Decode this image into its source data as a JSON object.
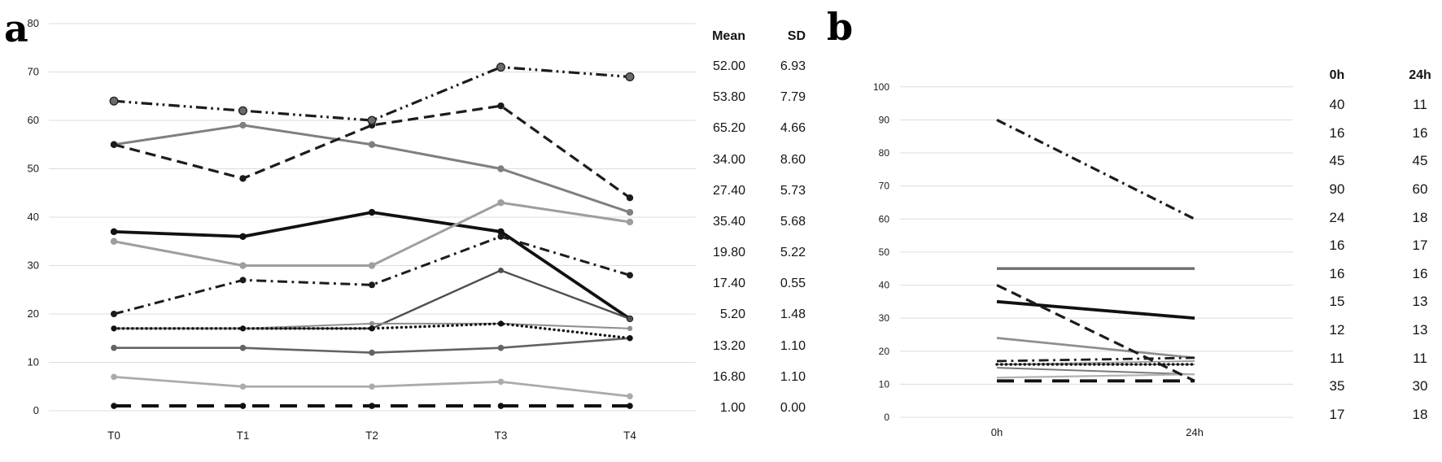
{
  "panels": {
    "a": {
      "letter": "a"
    },
    "b": {
      "letter": "b"
    }
  },
  "chart_data": [
    {
      "id": "a",
      "type": "line",
      "panel_letter": "a",
      "title": "",
      "xlabel": "",
      "ylabel": "",
      "categories": [
        "T0",
        "T1",
        "T2",
        "T3",
        "T4"
      ],
      "ylim": [
        0,
        80
      ],
      "ytick_step": 10,
      "yticks": [
        0,
        10,
        20,
        30,
        40,
        50,
        60,
        70,
        80
      ],
      "grid": true,
      "legend": "none",
      "table": {
        "headers": [
          "Mean",
          "SD"
        ]
      },
      "series": [
        {
          "name": "series-1",
          "style": "solid",
          "color": "#7f7f7f",
          "width": 3.0,
          "marker": {
            "color": "#7f7f7f",
            "r": 4.2
          },
          "values": [
            55,
            59,
            55,
            50,
            41
          ],
          "mean": "52.00",
          "sd": "6.93"
        },
        {
          "name": "series-2",
          "style": "dashed",
          "color": "#1c1c1c",
          "width": 3.2,
          "marker": {
            "color": "#1c1c1c",
            "r": 4.2
          },
          "values": [
            55,
            48,
            59,
            63,
            44
          ],
          "mean": "53.80",
          "sd": "7.79"
        },
        {
          "name": "series-3",
          "style": "dashdotdot",
          "color": "#1c1c1c",
          "width": 3.2,
          "marker": {
            "color": "#6b6b6b",
            "r": 4.8,
            "stroke": "#262626"
          },
          "values": [
            64,
            62,
            60,
            71,
            69
          ],
          "mean": "65.20",
          "sd": "4.66"
        },
        {
          "name": "series-4",
          "style": "solid",
          "color": "#111111",
          "width": 3.8,
          "marker": {
            "color": "#111111",
            "r": 4.2
          },
          "values": [
            37,
            36,
            41,
            37,
            19
          ],
          "mean": "34.00",
          "sd": "8.60"
        },
        {
          "name": "series-5",
          "style": "dashdot",
          "color": "#1c1c1c",
          "width": 3.0,
          "marker": {
            "color": "#1c1c1c",
            "r": 4.0
          },
          "values": [
            20,
            27,
            26,
            36,
            28
          ],
          "mean": "27.40",
          "sd": "5.73"
        },
        {
          "name": "series-6",
          "style": "solid",
          "color": "#9e9e9e",
          "width": 3.0,
          "marker": {
            "color": "#9e9e9e",
            "r": 4.2
          },
          "values": [
            35,
            30,
            30,
            43,
            39
          ],
          "mean": "35.40",
          "sd": "5.68"
        },
        {
          "name": "series-7",
          "style": "solid",
          "color": "#4f4f4f",
          "width": 2.4,
          "marker": {
            "color": "#4f4f4f",
            "r": 3.4
          },
          "values": [
            17,
            17,
            17,
            29,
            19
          ],
          "mean": "19.80",
          "sd": "5.22"
        },
        {
          "name": "series-8",
          "style": "solid",
          "color": "#8f8f8f",
          "width": 2.0,
          "marker": {
            "color": "#8f8f8f",
            "r": 3.2
          },
          "values": [
            17,
            17,
            18,
            18,
            17
          ],
          "mean": "17.40",
          "sd": "0.55"
        },
        {
          "name": "series-9",
          "style": "solid",
          "color": "#ababab",
          "width": 2.8,
          "marker": {
            "color": "#ababab",
            "r": 3.8
          },
          "values": [
            7,
            5,
            5,
            6,
            3
          ],
          "mean": "5.20",
          "sd": "1.48"
        },
        {
          "name": "series-10",
          "style": "solid",
          "color": "#636363",
          "width": 2.6,
          "marker": {
            "color": "#636363",
            "r": 3.8
          },
          "values": [
            13,
            13,
            12,
            13,
            15
          ],
          "mean": "13.20",
          "sd": "1.10"
        },
        {
          "name": "series-11",
          "style": "dotted",
          "color": "#111111",
          "width": 3.4,
          "marker": {
            "color": "#111111",
            "r": 3.6
          },
          "values": [
            17,
            17,
            17,
            18,
            15
          ],
          "mean": "16.80",
          "sd": "1.10"
        },
        {
          "name": "series-12",
          "style": "longdash",
          "color": "#111111",
          "width": 4.0,
          "marker": {
            "color": "#111111",
            "r": 3.8
          },
          "values": [
            1,
            1,
            1,
            1,
            1
          ],
          "mean": "1.00",
          "sd": "0.00"
        }
      ]
    },
    {
      "id": "b",
      "type": "line",
      "panel_letter": "b",
      "title": "",
      "xlabel": "",
      "ylabel": "",
      "categories": [
        "0h",
        "24h"
      ],
      "ylim": [
        0,
        100
      ],
      "ytick_step": 10,
      "yticks": [
        0,
        10,
        20,
        30,
        40,
        50,
        60,
        70,
        80,
        90,
        100
      ],
      "grid": true,
      "legend": "none",
      "table": {
        "headers": [
          "0h",
          "24h"
        ]
      },
      "series": [
        {
          "name": "series-1",
          "style": "dashed",
          "color": "#1c1c1c",
          "width": 3.2,
          "marker": null,
          "values": [
            40,
            11
          ]
        },
        {
          "name": "series-2",
          "style": "dotted",
          "color": "#111111",
          "width": 3.4,
          "marker": null,
          "values": [
            16,
            16
          ]
        },
        {
          "name": "series-3",
          "style": "solid",
          "color": "#6e6e6e",
          "width": 3.4,
          "marker": null,
          "values": [
            45,
            45
          ]
        },
        {
          "name": "series-4",
          "style": "dashdot",
          "color": "#1c1c1c",
          "width": 3.2,
          "marker": null,
          "values": [
            90,
            60
          ]
        },
        {
          "name": "series-5",
          "style": "solid",
          "color": "#8f8f8f",
          "width": 2.8,
          "marker": null,
          "values": [
            24,
            18
          ]
        },
        {
          "name": "series-6",
          "style": "solid",
          "color": "#9a9a9a",
          "width": 1.8,
          "marker": null,
          "values": [
            16,
            17
          ]
        },
        {
          "name": "series-7",
          "style": "solid",
          "color": "#858585",
          "width": 1.8,
          "marker": null,
          "values": [
            16,
            16
          ]
        },
        {
          "name": "series-8",
          "style": "solid",
          "color": "#7a7a7a",
          "width": 2.0,
          "marker": null,
          "values": [
            15,
            13
          ]
        },
        {
          "name": "series-9",
          "style": "solid",
          "color": "#b3b3b3",
          "width": 2.2,
          "marker": null,
          "values": [
            12,
            13
          ]
        },
        {
          "name": "series-10",
          "style": "longdash",
          "color": "#111111",
          "width": 3.8,
          "marker": null,
          "values": [
            11,
            11
          ]
        },
        {
          "name": "series-11",
          "style": "solid",
          "color": "#111111",
          "width": 3.8,
          "marker": null,
          "values": [
            35,
            30
          ]
        },
        {
          "name": "series-12",
          "style": "dashdot",
          "color": "#1c1c1c",
          "width": 2.8,
          "marker": null,
          "values": [
            17,
            18
          ]
        }
      ]
    }
  ],
  "colors": {
    "gridline": "#dcdcdc",
    "text": "#1a1a1a",
    "background": "#ffffff"
  }
}
